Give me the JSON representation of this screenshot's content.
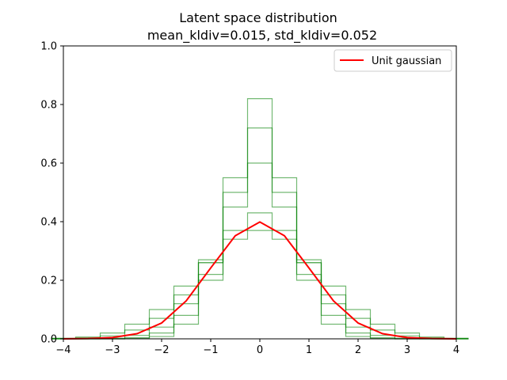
{
  "chart_data": {
    "type": "line",
    "title": "Latent space distribution",
    "subtitle": "mean_kldiv=0.015, std_kldiv=0.052",
    "xlabel": "",
    "ylabel": "",
    "xlim": [
      -4,
      4
    ],
    "ylim": [
      0,
      1.0
    ],
    "x_ticks": [
      "−4",
      "−3",
      "−2",
      "−1",
      "0",
      "1",
      "2",
      "3",
      "4"
    ],
    "y_ticks": [
      "0.0",
      "0.2",
      "0.4",
      "0.6",
      "0.8",
      "1.0"
    ],
    "grid": false,
    "legend": {
      "position": "top-right",
      "entries": [
        "Unit gaussian"
      ]
    },
    "series": [
      {
        "name": "Unit gaussian",
        "color": "#ff0000",
        "x": [
          -4,
          -3.5,
          -3,
          -2.5,
          -2,
          -1.5,
          -1,
          -0.5,
          0,
          0.5,
          1,
          1.5,
          2,
          2.5,
          3,
          3.5,
          4
        ],
        "y": [
          0.0001,
          0.0009,
          0.0044,
          0.0175,
          0.054,
          0.1295,
          0.242,
          0.3521,
          0.3989,
          0.3521,
          0.242,
          0.1295,
          0.054,
          0.0175,
          0.0044,
          0.0009,
          0.0001
        ]
      },
      {
        "color": "#008000",
        "x": [
          -4,
          -3.5,
          -3,
          -2.5,
          -2,
          -1.5,
          -1,
          -0.5,
          0,
          0.5,
          1,
          1.5,
          2,
          2.5,
          3,
          3.5,
          4
        ],
        "y": [
          0.001,
          0.003,
          0.01,
          0.03,
          0.07,
          0.15,
          0.26,
          0.37,
          0.43,
          0.37,
          0.26,
          0.15,
          0.07,
          0.03,
          0.01,
          0.003,
          0.001
        ]
      },
      {
        "color": "#008000",
        "x": [
          -4,
          -3.5,
          -3,
          -2.5,
          -2,
          -1.5,
          -1,
          -0.5,
          0,
          0.5,
          1,
          1.5,
          2,
          2.5,
          3,
          3.5,
          4
        ],
        "y": [
          0.0,
          0.0,
          0.0,
          0.004,
          0.02,
          0.08,
          0.22,
          0.5,
          0.72,
          0.5,
          0.22,
          0.08,
          0.02,
          0.004,
          0.0,
          0.0,
          0.0
        ]
      },
      {
        "color": "#008000",
        "x": [
          -4,
          -3.5,
          -3,
          -2.5,
          -2,
          -1.5,
          -1,
          -0.5,
          0,
          0.5,
          1,
          1.5,
          2,
          2.5,
          3,
          3.5,
          4
        ],
        "y": [
          0.0,
          0.0,
          0.0,
          0.001,
          0.008,
          0.05,
          0.2,
          0.55,
          0.82,
          0.55,
          0.2,
          0.05,
          0.008,
          0.001,
          0.0,
          0.0,
          0.0
        ]
      },
      {
        "color": "#008000",
        "x": [
          -4,
          -3.5,
          -3,
          -2.5,
          -2,
          -1.5,
          -1,
          -0.5,
          0,
          0.5,
          1,
          1.5,
          2,
          2.5,
          3,
          3.5,
          4
        ],
        "y": [
          0.002,
          0.006,
          0.02,
          0.05,
          0.1,
          0.18,
          0.27,
          0.34,
          0.37,
          0.34,
          0.27,
          0.18,
          0.1,
          0.05,
          0.02,
          0.006,
          0.002
        ]
      },
      {
        "color": "#008000",
        "x": [
          -4,
          -3.5,
          -3,
          -2.5,
          -2,
          -1.5,
          -1,
          -0.5,
          0,
          0.5,
          1,
          1.5,
          2,
          2.5,
          3,
          3.5,
          4
        ],
        "y": [
          0.0,
          0.0,
          0.002,
          0.012,
          0.04,
          0.12,
          0.26,
          0.45,
          0.6,
          0.45,
          0.26,
          0.12,
          0.04,
          0.012,
          0.002,
          0.0,
          0.0
        ]
      }
    ]
  }
}
